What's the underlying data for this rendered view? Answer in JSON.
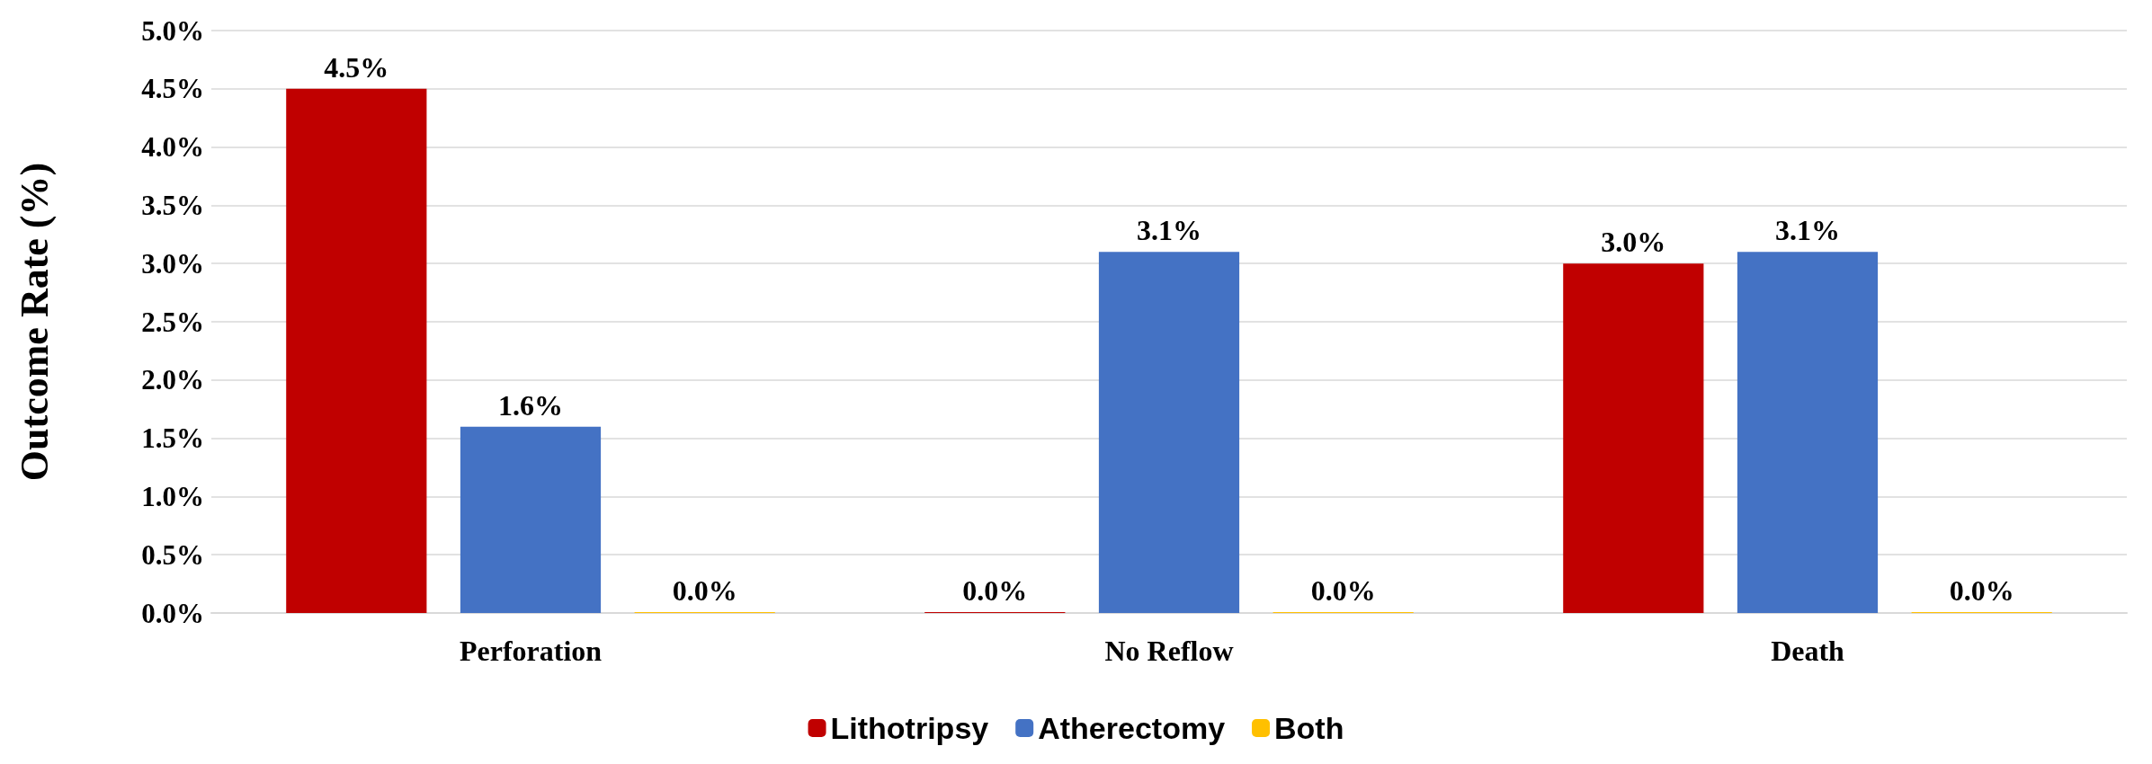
{
  "chart_data": {
    "type": "bar",
    "ylabel": "Outcome Rate (%)",
    "categories": [
      "Perforation",
      "No Reflow",
      "Death"
    ],
    "series": [
      {
        "name": "Lithotripsy",
        "color": "#c00000",
        "values": [
          4.5,
          0,
          3.0
        ],
        "value_labels": [
          "4.5%",
          "0.0%",
          "3.0%"
        ]
      },
      {
        "name": "Atherectomy",
        "color": "#4472c4",
        "values": [
          1.6,
          3.1,
          3.1
        ],
        "value_labels": [
          "1.6%",
          "3.1%",
          "3.1%"
        ]
      },
      {
        "name": "Both",
        "color": "#ffc000",
        "values": [
          0,
          0,
          0
        ],
        "value_labels": [
          "0.0%",
          "0.0%",
          "0.0%"
        ]
      }
    ],
    "ylim": [
      0,
      5
    ],
    "yticks": [
      {
        "value": 0,
        "label": "0.0%"
      },
      {
        "value": 0.5,
        "label": "0.5%"
      },
      {
        "value": 1,
        "label": "1.0%"
      },
      {
        "value": 1.5,
        "label": "1.5%"
      },
      {
        "value": 2,
        "label": "2.0%"
      },
      {
        "value": 2.5,
        "label": "2.5%"
      },
      {
        "value": 3,
        "label": "3.0%"
      },
      {
        "value": 3.5,
        "label": "3.5%"
      },
      {
        "value": 4,
        "label": "4.0%"
      },
      {
        "value": 4.5,
        "label": "4.5%"
      },
      {
        "value": 5,
        "label": "5.0%"
      }
    ],
    "grid": "y",
    "legend": "bottom"
  }
}
